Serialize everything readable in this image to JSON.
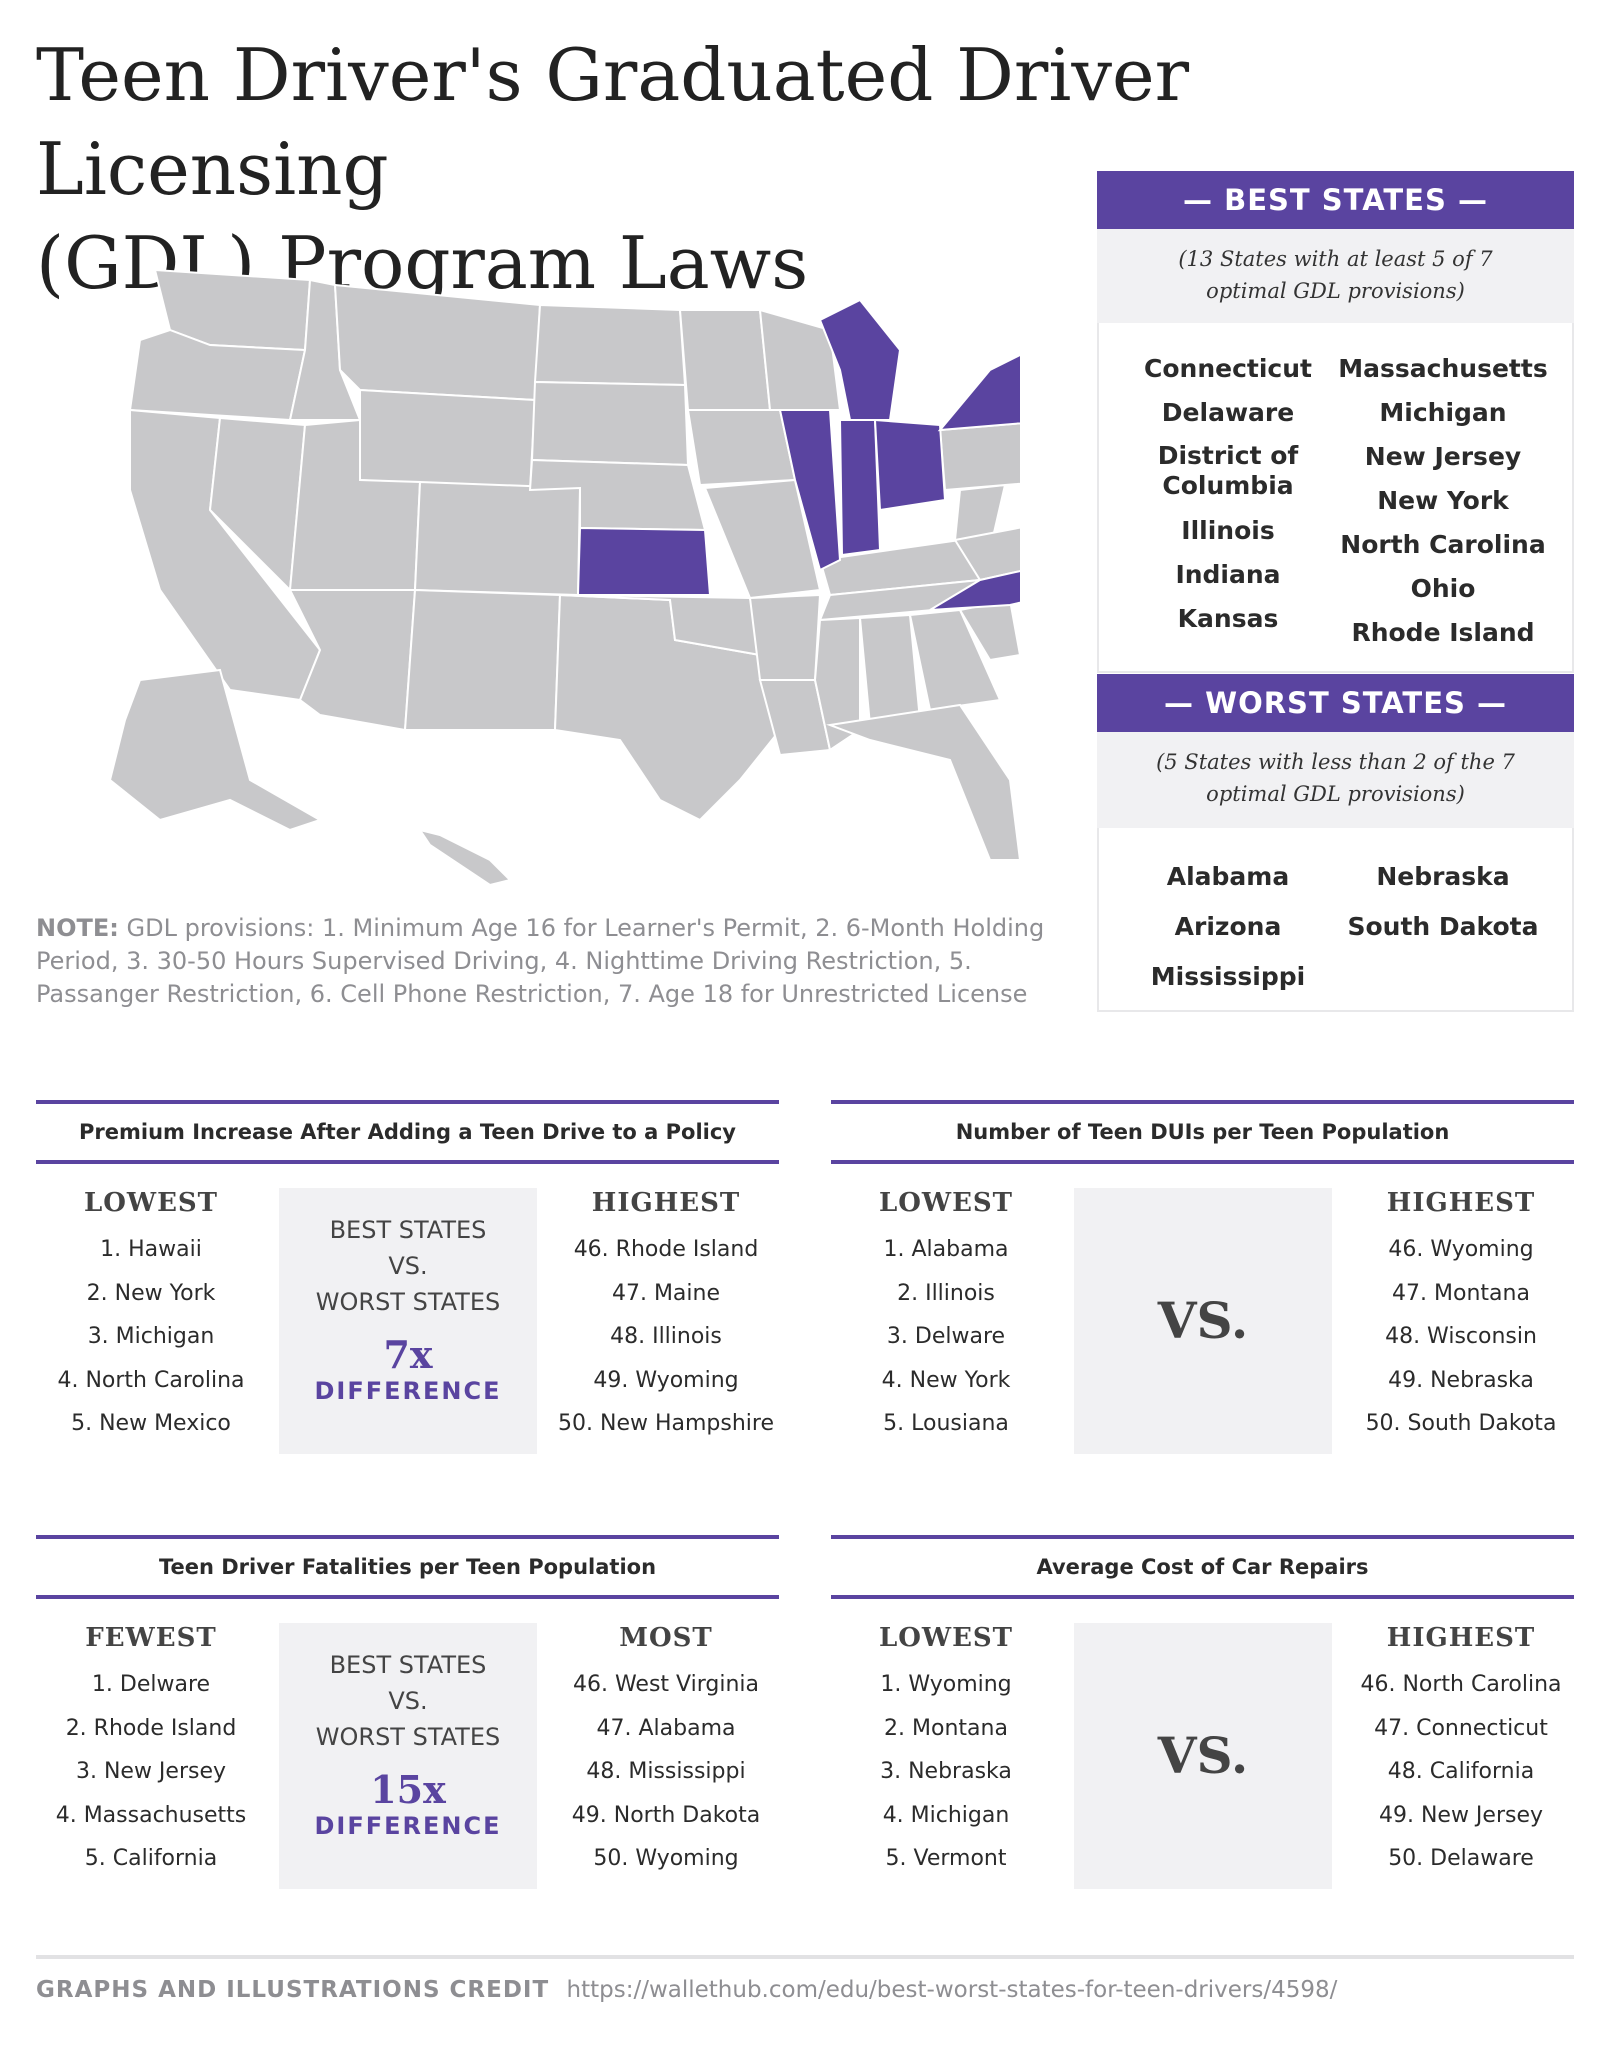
{
  "title_line1": "Teen Driver's Graduated Driver Licensing",
  "title_line2": "(GDL) Program Laws",
  "note": {
    "label": "NOTE:",
    "text": "GDL provisions: 1. Minimum Age 16 for Learner's Permit, 2. 6-Month Holding Period, 3. 30-50 Hours Supervised Driving, 4. Nighttime Driving Restriction, 5. Passanger Restriction, 6. Cell Phone Restriction, 7. Age 18 for Unrestricted License"
  },
  "colors": {
    "accent": "#5a44a0",
    "map_gray": "#c8c8ca",
    "panel_bg": "#f1f1f3"
  },
  "best": {
    "heading": "— BEST STATES —",
    "subtitle": "(13 States with at least 5 of 7 optimal GDL provisions)",
    "col1": [
      "Connecticut",
      "Delaware",
      "District of Columbia",
      "Illinois",
      "Indiana",
      "Kansas"
    ],
    "col2": [
      "Massachusetts",
      "Michigan",
      "New Jersey",
      "New York",
      "North Carolina",
      "Ohio",
      "Rhode Island"
    ]
  },
  "worst": {
    "heading": "— WORST STATES —",
    "subtitle": "(5 States with less than 2 of the 7 optimal GDL provisions)",
    "col1": [
      "Alabama",
      "Arizona",
      "Mississippi"
    ],
    "col2": [
      "Nebraska",
      "South Dakota"
    ]
  },
  "sections": {
    "premium": {
      "title": "Premium Increase After Adding a Teen Drive to a Policy",
      "left_head": "LOWEST",
      "left": [
        "1. Hawaii",
        "2. New York",
        "3. Michigan",
        "4. North Carolina",
        "5. New Mexico"
      ],
      "mid_line1": "BEST STATES",
      "mid_line2": "VS.",
      "mid_line3": "WORST STATES",
      "multiplier": "7x",
      "diff": "DIFFERENCE",
      "right_head": "HIGHEST",
      "right": [
        "46. Rhode Island",
        "47. Maine",
        "48. Illinois",
        "49. Wyoming",
        "50. New Hampshire"
      ]
    },
    "duis": {
      "title": "Number of Teen DUIs per Teen Population",
      "left_head": "LOWEST",
      "left": [
        "1. Alabama",
        "2. Illinois",
        "3. Delware",
        "4. New York",
        "5. Lousiana"
      ],
      "vs": "VS.",
      "right_head": "HIGHEST",
      "right": [
        "46. Wyoming",
        "47. Montana",
        "48. Wisconsin",
        "49. Nebraska",
        "50. South Dakota"
      ]
    },
    "fatalities": {
      "title": "Teen Driver Fatalities per Teen Population",
      "left_head": "FEWEST",
      "left": [
        "1. Delware",
        "2. Rhode Island",
        "3. New Jersey",
        "4. Massachusetts",
        "5. California"
      ],
      "mid_line1": "BEST STATES",
      "mid_line2": "VS.",
      "mid_line3": "WORST STATES",
      "multiplier": "15x",
      "diff": "DIFFERENCE",
      "right_head": "MOST",
      "right": [
        "46. West Virginia",
        "47. Alabama",
        "48. Mississippi",
        "49. North Dakota",
        "50. Wyoming"
      ]
    },
    "repairs": {
      "title": "Average Cost of Car Repairs",
      "left_head": "LOWEST",
      "left": [
        "1. Wyoming",
        "2. Montana",
        "3. Nebraska",
        "4. Michigan",
        "5. Vermont"
      ],
      "vs": "VS.",
      "right_head": "HIGHEST",
      "right": [
        "46. North Carolina",
        "47. Connecticut",
        "48. California",
        "49. New Jersey",
        "50. Delaware"
      ]
    }
  },
  "footer": {
    "label": "GRAPHS AND ILLUSTRATIONS CREDIT",
    "url": "https://wallethub.com/edu/best-worst-states-for-teen-drivers/4598/"
  }
}
